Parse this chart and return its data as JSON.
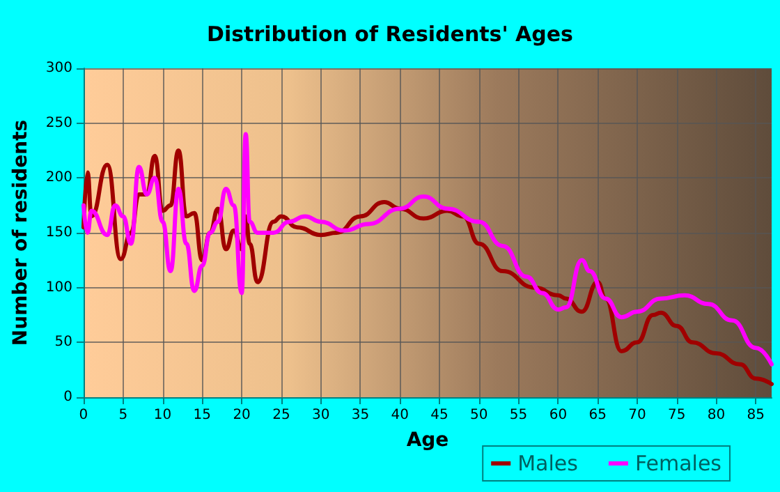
{
  "chart_data": {
    "type": "line",
    "title": "Distribution of Residents' Ages",
    "xlabel": "Age",
    "ylabel": "Number of residents",
    "xlim": [
      0,
      87
    ],
    "xticks": [
      0,
      5,
      10,
      15,
      20,
      25,
      30,
      35,
      40,
      45,
      50,
      55,
      60,
      65,
      70,
      75,
      80,
      85
    ],
    "ylim": [
      0,
      300
    ],
    "yticks": [
      0,
      50,
      100,
      150,
      200,
      250,
      300
    ],
    "grid": true,
    "legend": "bottom right",
    "marker": "none",
    "line_style": "solid",
    "series": [
      {
        "name": "Males",
        "color": "#a00000",
        "x": [
          0,
          0.5,
          1,
          3,
          4.7,
          6,
          7,
          8,
          9,
          10,
          11,
          12,
          13,
          14,
          15,
          16,
          17,
          18,
          19,
          20,
          20.5,
          21,
          22,
          24,
          25,
          27,
          30,
          32,
          35,
          38,
          40,
          43,
          46,
          48,
          50,
          53,
          57,
          60,
          61,
          63,
          65,
          66,
          68,
          70,
          72,
          73,
          75,
          77,
          80,
          83,
          85,
          87
        ],
        "values": [
          155,
          205,
          165,
          212,
          126,
          150,
          185,
          185,
          220,
          170,
          175,
          225,
          165,
          168,
          125,
          150,
          172,
          135,
          152,
          135,
          165,
          140,
          105,
          160,
          165,
          155,
          148,
          150,
          165,
          178,
          172,
          163,
          170,
          165,
          140,
          115,
          100,
          93,
          90,
          78,
          105,
          90,
          42,
          50,
          75,
          77,
          65,
          50,
          40,
          30,
          17,
          12
        ]
      },
      {
        "name": "Females",
        "color": "#ff00ff",
        "x": [
          0,
          0.5,
          1,
          3,
          4,
          5,
          6,
          7,
          8,
          9,
          10,
          11,
          12,
          13,
          14,
          15,
          16,
          17,
          18,
          19,
          20,
          20.5,
          21,
          22,
          24,
          26,
          28,
          30,
          33,
          36,
          40,
          43,
          46,
          50,
          53,
          56,
          58,
          60,
          61,
          63,
          64,
          66,
          68,
          70,
          73,
          76,
          79,
          82,
          85,
          87
        ],
        "values": [
          175,
          150,
          170,
          148,
          175,
          165,
          140,
          210,
          185,
          200,
          160,
          115,
          190,
          140,
          97,
          120,
          150,
          160,
          190,
          175,
          95,
          240,
          160,
          150,
          150,
          160,
          165,
          160,
          152,
          158,
          172,
          183,
          172,
          160,
          138,
          110,
          95,
          80,
          82,
          125,
          115,
          90,
          73,
          78,
          90,
          93,
          85,
          70,
          45,
          30
        ]
      }
    ]
  }
}
